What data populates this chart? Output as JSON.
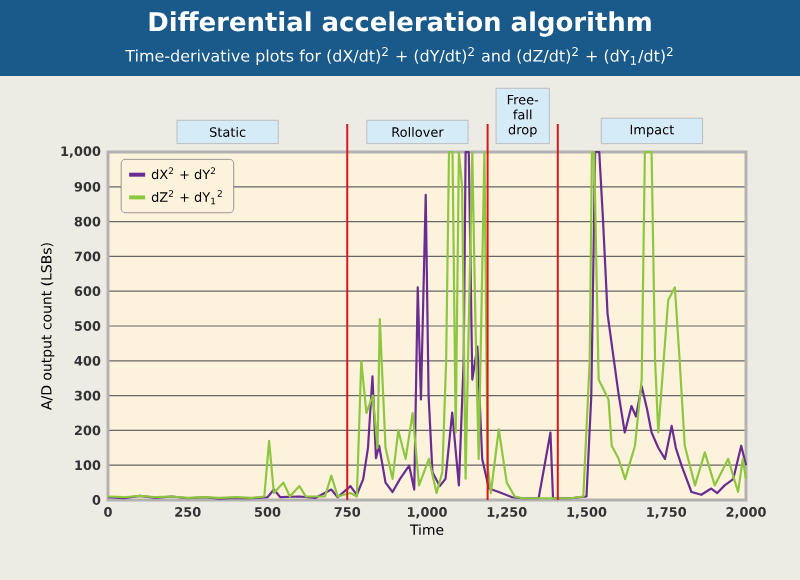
{
  "chart_data": {
    "type": "line",
    "title": "Differential acceleration algorithm",
    "subtitle": "Time-derivative plots for (dX/dt)$^{2}$ + (dY/dt)$^{2}$ and (dZ/dt)$^{2}$ + (dY$_{1}$/dt)$^{2}$",
    "xlabel": "Time",
    "ylabel": "A/D output count (LSBs)",
    "annotations": [
      "Static",
      "Rollover",
      "Free-fall drop",
      "Impact"
    ],
    "xlim": [
      0,
      2000
    ],
    "ylim": [
      0,
      1000
    ],
    "xticks": [
      0,
      250,
      500,
      750,
      {
        "value": 1000,
        "label": "1,000"
      },
      {
        "value": 1250,
        "label": "1,250"
      },
      {
        "value": 1500,
        "label": "1,500"
      },
      {
        "value": 1750,
        "label": "1,750"
      },
      {
        "value": 2000,
        "label": "2,000"
      }
    ],
    "yticks": [
      0,
      100,
      200,
      300,
      400,
      500,
      600,
      700,
      800,
      900,
      {
        "value": 1000,
        "label": "1,000"
      }
    ],
    "grid": "y",
    "legend": "top left",
    "marker": "none",
    "line_style": "solid",
    "ref_lines": [
      {
        "axis": "x",
        "value": 750,
        "color": "#d7191c"
      },
      {
        "axis": "x",
        "value": 1190,
        "color": "#d7191c"
      },
      {
        "axis": "x",
        "value": 1410,
        "color": "#d7191c"
      }
    ],
    "series": [
      {
        "name": "dX$^{2}$ + dY$^{2}$",
        "color": "#6a2c91",
        "x": [
          0,
          50,
          100,
          150,
          200,
          250,
          300,
          350,
          400,
          450,
          500,
          520,
          540,
          600,
          650,
          700,
          720,
          760,
          780,
          800,
          815,
          829,
          840,
          850,
          870,
          892,
          915,
          944,
          960,
          971,
          981,
          996,
          1005,
          1017,
          1040,
          1058,
          1079,
          1100,
          1115,
          1121,
          1131,
          1142,
          1158,
          1173,
          1194,
          1225,
          1267,
          1300,
          1350,
          1387,
          1395,
          1450,
          1500,
          1515,
          1527,
          1540,
          1552,
          1566,
          1600,
          1620,
          1641,
          1655,
          1673,
          1690,
          1704,
          1725,
          1746,
          1767,
          1780,
          1798,
          1829,
          1860,
          1891,
          1910,
          1933,
          1960,
          1985,
          2000
        ],
        "values": [
          8,
          5,
          12,
          6,
          10,
          5,
          8,
          4,
          6,
          5,
          8,
          30,
          8,
          10,
          6,
          30,
          8,
          40,
          15,
          60,
          150,
          355,
          120,
          156,
          50,
          23,
          60,
          99,
          30,
          611,
          289,
          877,
          300,
          80,
          40,
          61,
          251,
          42,
          400,
          1000,
          1000,
          346,
          441,
          118,
          33,
          23,
          8,
          5,
          5,
          194,
          5,
          5,
          10,
          300,
          1000,
          1000,
          800,
          535,
          308,
          194,
          270,
          240,
          327,
          260,
          194,
          150,
          118,
          213,
          150,
          99,
          23,
          15,
          33,
          20,
          42,
          60,
          156,
          100
        ]
      },
      {
        "name": "dZ$^{2}$ + dY$_{1}$$^{2}$",
        "color": "#8dc63f",
        "x": [
          0,
          50,
          100,
          150,
          200,
          250,
          300,
          350,
          400,
          450,
          490,
          505,
          520,
          550,
          570,
          600,
          620,
          680,
          700,
          720,
          760,
          780,
          794,
          810,
          830,
          845,
          852,
          870,
          892,
          910,
          933,
          955,
          975,
          1006,
          1030,
          1048,
          1060,
          1069,
          1080,
          1090,
          1100,
          1110,
          1121,
          1142,
          1152,
          1162,
          1180,
          1190,
          1200,
          1225,
          1250,
          1275,
          1300,
          1350,
          1400,
          1450,
          1490,
          1510,
          1517,
          1524,
          1538,
          1569,
          1579,
          1600,
          1621,
          1652,
          1673,
          1683,
          1704,
          1715,
          1725,
          1756,
          1777,
          1792,
          1808,
          1840,
          1871,
          1902,
          1944,
          1975,
          1990,
          2000
        ],
        "values": [
          10,
          8,
          12,
          8,
          10,
          6,
          8,
          6,
          8,
          6,
          10,
          170,
          20,
          50,
          10,
          40,
          10,
          10,
          70,
          10,
          20,
          10,
          399,
          250,
          300,
          150,
          520,
          150,
          61,
          200,
          118,
          250,
          42,
          118,
          20,
          80,
          400,
          1000,
          1000,
          194,
          1000,
          900,
          61,
          1000,
          500,
          118,
          1000,
          100,
          20,
          203,
          50,
          10,
          5,
          5,
          5,
          5,
          10,
          400,
          1000,
          1000,
          346,
          289,
          156,
          120,
          60,
          156,
          346,
          1000,
          1000,
          400,
          194,
          574,
          611,
          400,
          156,
          42,
          137,
          42,
          118,
          23,
          118,
          60
        ]
      }
    ]
  }
}
